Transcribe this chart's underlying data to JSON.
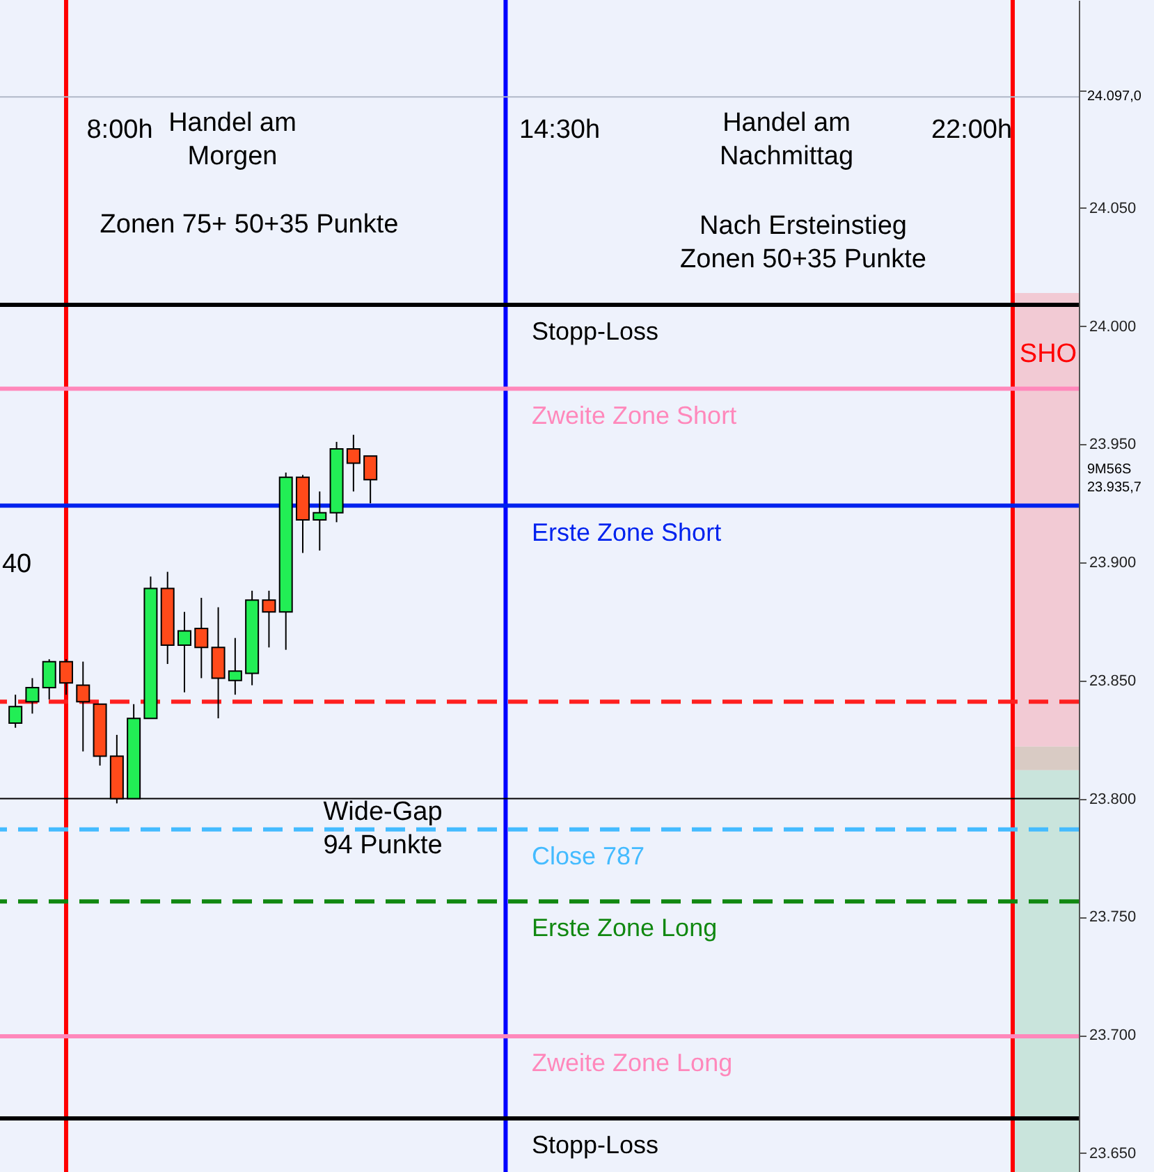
{
  "chart_data": {
    "type": "candlestick",
    "categories": [
      null,
      null,
      null,
      null,
      null,
      null,
      null,
      null,
      null,
      null,
      null,
      null,
      null,
      null,
      null,
      null,
      null,
      null,
      null,
      null,
      null,
      null,
      null,
      null,
      null,
      null,
      null,
      null,
      null,
      null,
      null,
      null,
      null,
      null,
      null,
      null,
      null,
      null,
      null,
      null,
      null,
      null,
      null,
      null,
      null,
      null,
      null,
      null,
      null,
      null,
      null,
      null,
      null,
      null,
      null,
      null,
      null,
      null,
      null,
      null,
      null,
      null,
      null
    ],
    "ohlc": [
      [
        23832,
        23844,
        23830,
        23839
      ],
      [
        23841,
        23851,
        23836,
        23847
      ],
      [
        23847,
        23859,
        23842,
        23858
      ],
      [
        23858,
        23859,
        23844,
        23849
      ],
      [
        23848,
        23858,
        23820,
        23841
      ],
      [
        23840,
        23840,
        23814,
        23818
      ],
      [
        23818,
        23827,
        23798,
        23800
      ],
      [
        23800,
        23840,
        23800,
        23834
      ],
      [
        23834,
        23894,
        23834,
        23889
      ],
      [
        23889,
        23896,
        23857,
        23865
      ],
      [
        23865,
        23879,
        23845,
        23871
      ],
      [
        23872,
        23885,
        23851,
        23864
      ],
      [
        23864,
        23881,
        23834,
        23851
      ],
      [
        23850,
        23868,
        23844,
        23854
      ],
      [
        23853,
        23888,
        23848,
        23884
      ],
      [
        23884,
        23888,
        23864,
        23879
      ],
      [
        23879,
        23938,
        23863,
        23936
      ],
      [
        23936,
        23937,
        23904,
        23918
      ],
      [
        23918,
        23930,
        23905,
        23921
      ],
      [
        23921,
        23951,
        23917,
        23948
      ],
      [
        23948,
        23954,
        23930,
        23942
      ],
      [
        23945,
        23945,
        23925,
        23935
      ],
      null,
      null,
      null,
      null,
      null,
      null,
      null,
      null,
      null,
      null,
      null,
      null,
      null,
      null,
      null,
      null,
      null,
      null,
      null,
      null,
      null,
      null,
      null,
      null,
      null,
      null,
      null,
      null,
      null,
      null,
      null,
      null,
      null,
      null,
      null,
      null,
      null,
      null,
      null,
      null,
      null
    ],
    "colors": [
      "#22ee55",
      "#22ee55",
      "#22ee55",
      "#ff4a1a",
      "#ff4a1a",
      "#ff4a1a",
      "#ff4a1a",
      "#22ee55",
      "#22ee55",
      "#ff4a1a",
      "#22ee55",
      "#ff4a1a",
      "#ff4a1a",
      "#22ee55",
      "#22ee55",
      "#ff4a1a",
      "#22ee55",
      "#ff4a1a",
      "#22ee55",
      "#22ee55",
      "#ff4a1a",
      "#ff4a1a",
      null,
      null,
      null,
      null,
      null,
      null,
      null,
      null,
      null,
      null,
      null,
      null,
      null,
      null,
      null,
      null,
      null,
      null,
      null,
      null,
      null,
      null,
      null,
      null,
      null,
      null,
      null,
      null,
      null,
      null,
      null,
      null,
      null,
      null,
      null,
      null,
      null,
      null,
      null,
      null,
      null
    ],
    "ylim": [
      23642,
      24138
    ],
    "yticks": [
      {
        "value": 23650,
        "label": "23.650"
      },
      {
        "value": 23700,
        "label": "23.700"
      },
      {
        "value": 23750,
        "label": "23.750"
      },
      {
        "value": 23800,
        "label": "23.800"
      },
      {
        "value": 23850,
        "label": "23.850"
      },
      {
        "value": 23900,
        "label": "23.900"
      },
      {
        "value": 23950,
        "label": "23.950"
      },
      {
        "value": 24000,
        "label": "24.000"
      },
      {
        "value": 24050,
        "label": "24.050"
      },
      {
        "value": 24100,
        "label": null
      }
    ],
    "tick_labels": "y",
    "bands": [
      {
        "axis": "y",
        "from": 23822,
        "to": 24014,
        "color": "#f2cad4"
      },
      {
        "axis": "y",
        "from": 23812,
        "to": 23822,
        "color": "#d9cbc4"
      },
      {
        "axis": "y",
        "from": 23642,
        "to": 23812,
        "color": "#c9e4dc"
      }
    ],
    "ref_lines": [
      {
        "axis": "y",
        "value": 24097,
        "color": "#b0b8c8"
      },
      {
        "axis": "y",
        "value": 24009,
        "label": "Stopp-Loss",
        "color": "#000000"
      },
      {
        "axis": "y",
        "value": 23973.5,
        "label": "Zweite Zone Short",
        "color": "#ff88bb"
      },
      {
        "axis": "y",
        "value": 23924,
        "label": "Erste Zone Short",
        "color": "#0022ee"
      },
      {
        "axis": "y",
        "value": 23841,
        "color": "#ff2020",
        "line_style": "dashed"
      },
      {
        "axis": "y",
        "value": 23800,
        "color": "#000000"
      },
      {
        "axis": "y",
        "value": 23787,
        "label": "Close 787",
        "color": "#44bbff",
        "line_style": "dashed"
      },
      {
        "axis": "y",
        "value": 23756.5,
        "label": "Erste Zone Long",
        "color": "#118811",
        "line_style": "dashed"
      },
      {
        "axis": "y",
        "value": 23699.4,
        "label": "Zweite  Zone Long",
        "color": "#ff88bb"
      },
      {
        "axis": "y",
        "value": 23664.7,
        "label": "Stopp-Loss",
        "color": "#000000"
      }
    ],
    "annotations": [
      "8:00h",
      "Handel am\nMorgen",
      "14:30h",
      "Handel am\nNachmittag",
      "22:00h",
      "Zonen 75+ 50+35 Punkte",
      "Nach Ersteinstieg\nZonen 50+35 Punkte",
      "Wide-Gap\n94 Punkte",
      "SHO",
      "40",
      "24.097,0",
      "9M56S",
      "23.935,7"
    ]
  }
}
